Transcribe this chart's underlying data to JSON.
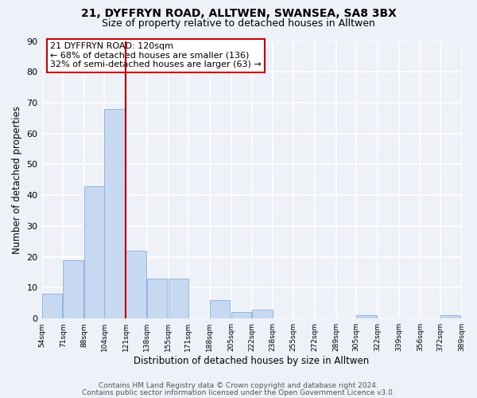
{
  "title": "21, DYFFRYN ROAD, ALLTWEN, SWANSEA, SA8 3BX",
  "subtitle": "Size of property relative to detached houses in Alltwen",
  "xlabel": "Distribution of detached houses by size in Alltwen",
  "ylabel": "Number of detached properties",
  "bins": [
    54,
    71,
    88,
    104,
    121,
    138,
    155,
    171,
    188,
    205,
    222,
    238,
    255,
    272,
    289,
    305,
    322,
    339,
    356,
    372,
    389
  ],
  "counts": [
    8,
    19,
    43,
    68,
    22,
    13,
    13,
    0,
    6,
    2,
    3,
    0,
    0,
    0,
    0,
    1,
    0,
    0,
    0,
    1
  ],
  "bar_color": "#c6d9f0",
  "bar_edge_color": "#8db4e2",
  "vline_x": 121,
  "vline_color": "#cc0000",
  "annotation_title": "21 DYFFRYN ROAD: 120sqm",
  "annotation_line1": "← 68% of detached houses are smaller (136)",
  "annotation_line2": "32% of semi-detached houses are larger (63) →",
  "annotation_box_color": "white",
  "annotation_box_edge": "#cc0000",
  "ylim": [
    0,
    90
  ],
  "tick_labels": [
    "54sqm",
    "71sqm",
    "88sqm",
    "104sqm",
    "121sqm",
    "138sqm",
    "155sqm",
    "171sqm",
    "188sqm",
    "205sqm",
    "222sqm",
    "238sqm",
    "255sqm",
    "272sqm",
    "289sqm",
    "305sqm",
    "322sqm",
    "339sqm",
    "356sqm",
    "372sqm",
    "389sqm"
  ],
  "footer1": "Contains HM Land Registry data © Crown copyright and database right 2024.",
  "footer2": "Contains public sector information licensed under the Open Government Licence v3.0.",
  "background_color": "#eef2f8",
  "grid_color": "white"
}
